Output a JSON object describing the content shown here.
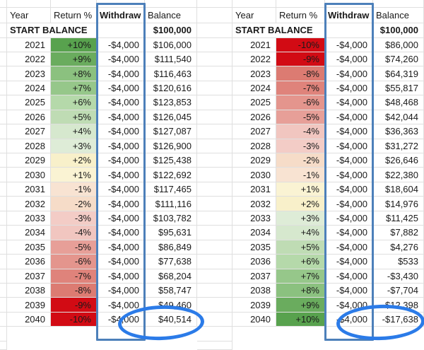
{
  "grid": {
    "line_color": "#dfdfdf"
  },
  "selection": {
    "withdraw_box_color": "#4d80ba"
  },
  "annotations": {
    "circle_color": "#2b7be8"
  },
  "tables": [
    {
      "headers": {
        "year": "Year",
        "return_pct": "Return %",
        "withdraw": "Withdraw",
        "balance": "Balance"
      },
      "start_row": {
        "label": "START BALANCE",
        "balance": "$100,000"
      },
      "rows": [
        {
          "year": "2021",
          "ret": "+10%",
          "withdraw": "-$4,000",
          "balance": "$106,000",
          "color": "#58a24e"
        },
        {
          "year": "2022",
          "ret": "+9%",
          "withdraw": "-$4,000",
          "balance": "$111,540",
          "color": "#6aac5e"
        },
        {
          "year": "2023",
          "ret": "+8%",
          "withdraw": "-$4,000",
          "balance": "$116,463",
          "color": "#8bc17f"
        },
        {
          "year": "2024",
          "ret": "+7%",
          "withdraw": "-$4,000",
          "balance": "$120,616",
          "color": "#96c78a"
        },
        {
          "year": "2025",
          "ret": "+6%",
          "withdraw": "-$4,000",
          "balance": "$123,853",
          "color": "#b5d9aa"
        },
        {
          "year": "2026",
          "ret": "+5%",
          "withdraw": "-$4,000",
          "balance": "$126,045",
          "color": "#bfdcb4"
        },
        {
          "year": "2027",
          "ret": "+4%",
          "withdraw": "-$4,000",
          "balance": "$127,087",
          "color": "#d6e8ce"
        },
        {
          "year": "2028",
          "ret": "+3%",
          "withdraw": "-$4,000",
          "balance": "$126,900",
          "color": "#deecd7"
        },
        {
          "year": "2029",
          "ret": "+2%",
          "withdraw": "-$4,000",
          "balance": "$125,438",
          "color": "#f8f0ca"
        },
        {
          "year": "2030",
          "ret": "+1%",
          "withdraw": "-$4,000",
          "balance": "$122,692",
          "color": "#faf3d3"
        },
        {
          "year": "2031",
          "ret": "-1%",
          "withdraw": "-$4,000",
          "balance": "$117,465",
          "color": "#f8e3d2"
        },
        {
          "year": "2032",
          "ret": "-2%",
          "withdraw": "-$4,000",
          "balance": "$111,116",
          "color": "#f6dcc8"
        },
        {
          "year": "2033",
          "ret": "-3%",
          "withdraw": "-$4,000",
          "balance": "$103,782",
          "color": "#f3ccc6"
        },
        {
          "year": "2034",
          "ret": "-4%",
          "withdraw": "-$4,000",
          "balance": "$95,631",
          "color": "#f1c6c0"
        },
        {
          "year": "2035",
          "ret": "-5%",
          "withdraw": "-$4,000",
          "balance": "$86,849",
          "color": "#e79f98"
        },
        {
          "year": "2036",
          "ret": "-6%",
          "withdraw": "-$4,000",
          "balance": "$77,638",
          "color": "#e4958d"
        },
        {
          "year": "2037",
          "ret": "-7%",
          "withdraw": "-$4,000",
          "balance": "$68,204",
          "color": "#df837b"
        },
        {
          "year": "2038",
          "ret": "-8%",
          "withdraw": "-$4,000",
          "balance": "$58,747",
          "color": "#dc7b72"
        },
        {
          "year": "2039",
          "ret": "-9%",
          "withdraw": "-$4,000",
          "balance": "$49,460",
          "color": "#d20b14"
        },
        {
          "year": "2040",
          "ret": "-10%",
          "withdraw": "-$4,000",
          "balance": "$40,514",
          "color": "#d20b14"
        }
      ],
      "circled_value": "$40,514"
    },
    {
      "headers": {
        "year": "Year",
        "return_pct": "Return %",
        "withdraw": "Withdraw",
        "balance": "Balance"
      },
      "start_row": {
        "label": "START BALANCE",
        "balance": "$100,000"
      },
      "rows": [
        {
          "year": "2021",
          "ret": "-10%",
          "withdraw": "-$4,000",
          "balance": "$86,000",
          "color": "#d20b14"
        },
        {
          "year": "2022",
          "ret": "-9%",
          "withdraw": "-$4,000",
          "balance": "$74,260",
          "color": "#d20b14"
        },
        {
          "year": "2023",
          "ret": "-8%",
          "withdraw": "-$4,000",
          "balance": "$64,319",
          "color": "#dc7b72"
        },
        {
          "year": "2024",
          "ret": "-7%",
          "withdraw": "-$4,000",
          "balance": "$55,817",
          "color": "#df837b"
        },
        {
          "year": "2025",
          "ret": "-6%",
          "withdraw": "-$4,000",
          "balance": "$48,468",
          "color": "#e4958d"
        },
        {
          "year": "2026",
          "ret": "-5%",
          "withdraw": "-$4,000",
          "balance": "$42,044",
          "color": "#e79f98"
        },
        {
          "year": "2027",
          "ret": "-4%",
          "withdraw": "-$4,000",
          "balance": "$36,363",
          "color": "#f1c6c0"
        },
        {
          "year": "2028",
          "ret": "-3%",
          "withdraw": "-$4,000",
          "balance": "$31,272",
          "color": "#f3ccc6"
        },
        {
          "year": "2029",
          "ret": "-2%",
          "withdraw": "-$4,000",
          "balance": "$26,646",
          "color": "#f6dcc8"
        },
        {
          "year": "2030",
          "ret": "-1%",
          "withdraw": "-$4,000",
          "balance": "$22,380",
          "color": "#f8e3d2"
        },
        {
          "year": "2031",
          "ret": "+1%",
          "withdraw": "-$4,000",
          "balance": "$18,604",
          "color": "#faf3d3"
        },
        {
          "year": "2032",
          "ret": "+2%",
          "withdraw": "-$4,000",
          "balance": "$14,976",
          "color": "#f8f0ca"
        },
        {
          "year": "2033",
          "ret": "+3%",
          "withdraw": "-$4,000",
          "balance": "$11,425",
          "color": "#deecd7"
        },
        {
          "year": "2034",
          "ret": "+4%",
          "withdraw": "-$4,000",
          "balance": "$7,882",
          "color": "#d6e8ce"
        },
        {
          "year": "2035",
          "ret": "+5%",
          "withdraw": "-$4,000",
          "balance": "$4,276",
          "color": "#bfdcb4"
        },
        {
          "year": "2036",
          "ret": "+6%",
          "withdraw": "-$4,000",
          "balance": "$533",
          "color": "#b5d9aa"
        },
        {
          "year": "2037",
          "ret": "+7%",
          "withdraw": "-$4,000",
          "balance": "-$3,430",
          "color": "#96c78a"
        },
        {
          "year": "2038",
          "ret": "+8%",
          "withdraw": "-$4,000",
          "balance": "-$7,704",
          "color": "#8bc17f"
        },
        {
          "year": "2039",
          "ret": "+9%",
          "withdraw": "-$4,000",
          "balance": "-$12,398",
          "color": "#6aac5e"
        },
        {
          "year": "2040",
          "ret": "+10%",
          "withdraw": "-$4,000",
          "balance": "-$17,638",
          "color": "#58a24e"
        }
      ],
      "circled_value": "-$17,638"
    }
  ]
}
